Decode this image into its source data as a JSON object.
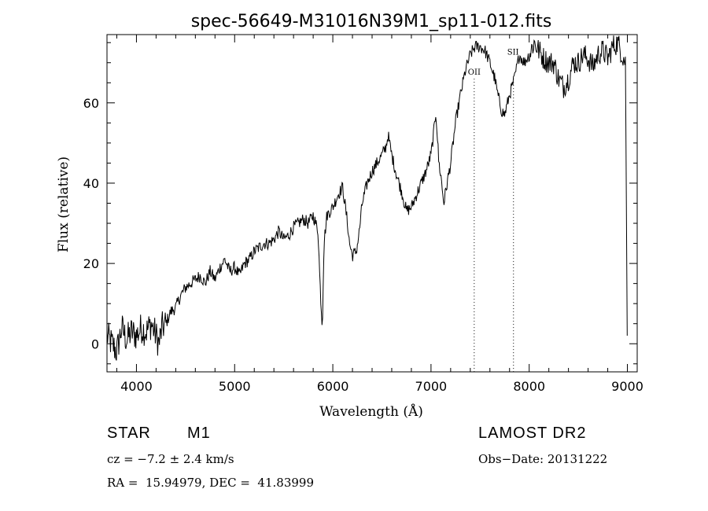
{
  "chart_data": {
    "type": "line",
    "title": "spec-56649-M31016N39M1_sp11-012.fits",
    "xlabel": "Wavelength (Å)",
    "ylabel": "Flux (relative)",
    "xlim": [
      3700,
      9100
    ],
    "ylim": [
      -7,
      77
    ],
    "xticks": [
      4000,
      5000,
      6000,
      7000,
      8000,
      9000
    ],
    "yticks": [
      0,
      20,
      40,
      60
    ],
    "grid": false,
    "series": [
      {
        "name": "flux",
        "x": [
          3700,
          3750,
          3800,
          3850,
          3900,
          3950,
          4000,
          4050,
          4100,
          4150,
          4200,
          4230,
          4260,
          4300,
          4350,
          4400,
          4450,
          4500,
          4550,
          4600,
          4650,
          4700,
          4750,
          4800,
          4850,
          4900,
          4950,
          5000,
          5050,
          5100,
          5150,
          5200,
          5250,
          5300,
          5350,
          5400,
          5450,
          5500,
          5550,
          5600,
          5650,
          5700,
          5750,
          5800,
          5850,
          5870,
          5893,
          5910,
          5940,
          6000,
          6050,
          6100,
          6150,
          6170,
          6200,
          6240,
          6270,
          6300,
          6350,
          6400,
          6450,
          6500,
          6540,
          6563,
          6600,
          6650,
          6700,
          6720,
          6750,
          6800,
          6850,
          6900,
          6950,
          7000,
          7030,
          7050,
          7080,
          7100,
          7130,
          7150,
          7200,
          7250,
          7300,
          7350,
          7400,
          7450,
          7500,
          7550,
          7600,
          7650,
          7680,
          7720,
          7750,
          7800,
          7850,
          7900,
          7950,
          8000,
          8050,
          8100,
          8150,
          8200,
          8250,
          8300,
          8350,
          8400,
          8450,
          8500,
          8550,
          8600,
          8650,
          8700,
          8750,
          8800,
          8850,
          8900,
          8950,
          8980,
          9000
        ],
        "y": [
          2,
          0,
          -2,
          4,
          1,
          3,
          2,
          4,
          3,
          5,
          2,
          0,
          4,
          5,
          8,
          9,
          12,
          14,
          15,
          16,
          17,
          15,
          18,
          16,
          19,
          21,
          18,
          19,
          17,
          20,
          21,
          23,
          24,
          25,
          25,
          26,
          28,
          26,
          27,
          29,
          30,
          31,
          30,
          32,
          28,
          15,
          4,
          25,
          32,
          34,
          37,
          39,
          30,
          25,
          22,
          23,
          28,
          35,
          40,
          43,
          45,
          47,
          49,
          52,
          47,
          42,
          38,
          36,
          33,
          34,
          37,
          40,
          43,
          47,
          53,
          58,
          45,
          42,
          35,
          38,
          45,
          55,
          62,
          68,
          72,
          74,
          74,
          73,
          70,
          66,
          62,
          58,
          57,
          62,
          66,
          72,
          70,
          72,
          75,
          73,
          71,
          70,
          70,
          66,
          64,
          66,
          70,
          70,
          72,
          71,
          69,
          72,
          73,
          71,
          74,
          75,
          72,
          70,
          2
        ]
      }
    ],
    "annotations": [
      {
        "label": "OII",
        "x": 7440
      },
      {
        "label": "SII",
        "x": 7840
      }
    ]
  },
  "info": {
    "object_class": "STAR",
    "subclass": "M1",
    "survey": "LAMOST DR2",
    "redshift": "cz = −7.2 ± 2.4 km/s",
    "obs_date": "Obs−Date: 20131222",
    "coords": "RA =  15.94979, DEC =  41.83999"
  },
  "colors": {
    "line": "#000000",
    "background": "#ffffff"
  }
}
